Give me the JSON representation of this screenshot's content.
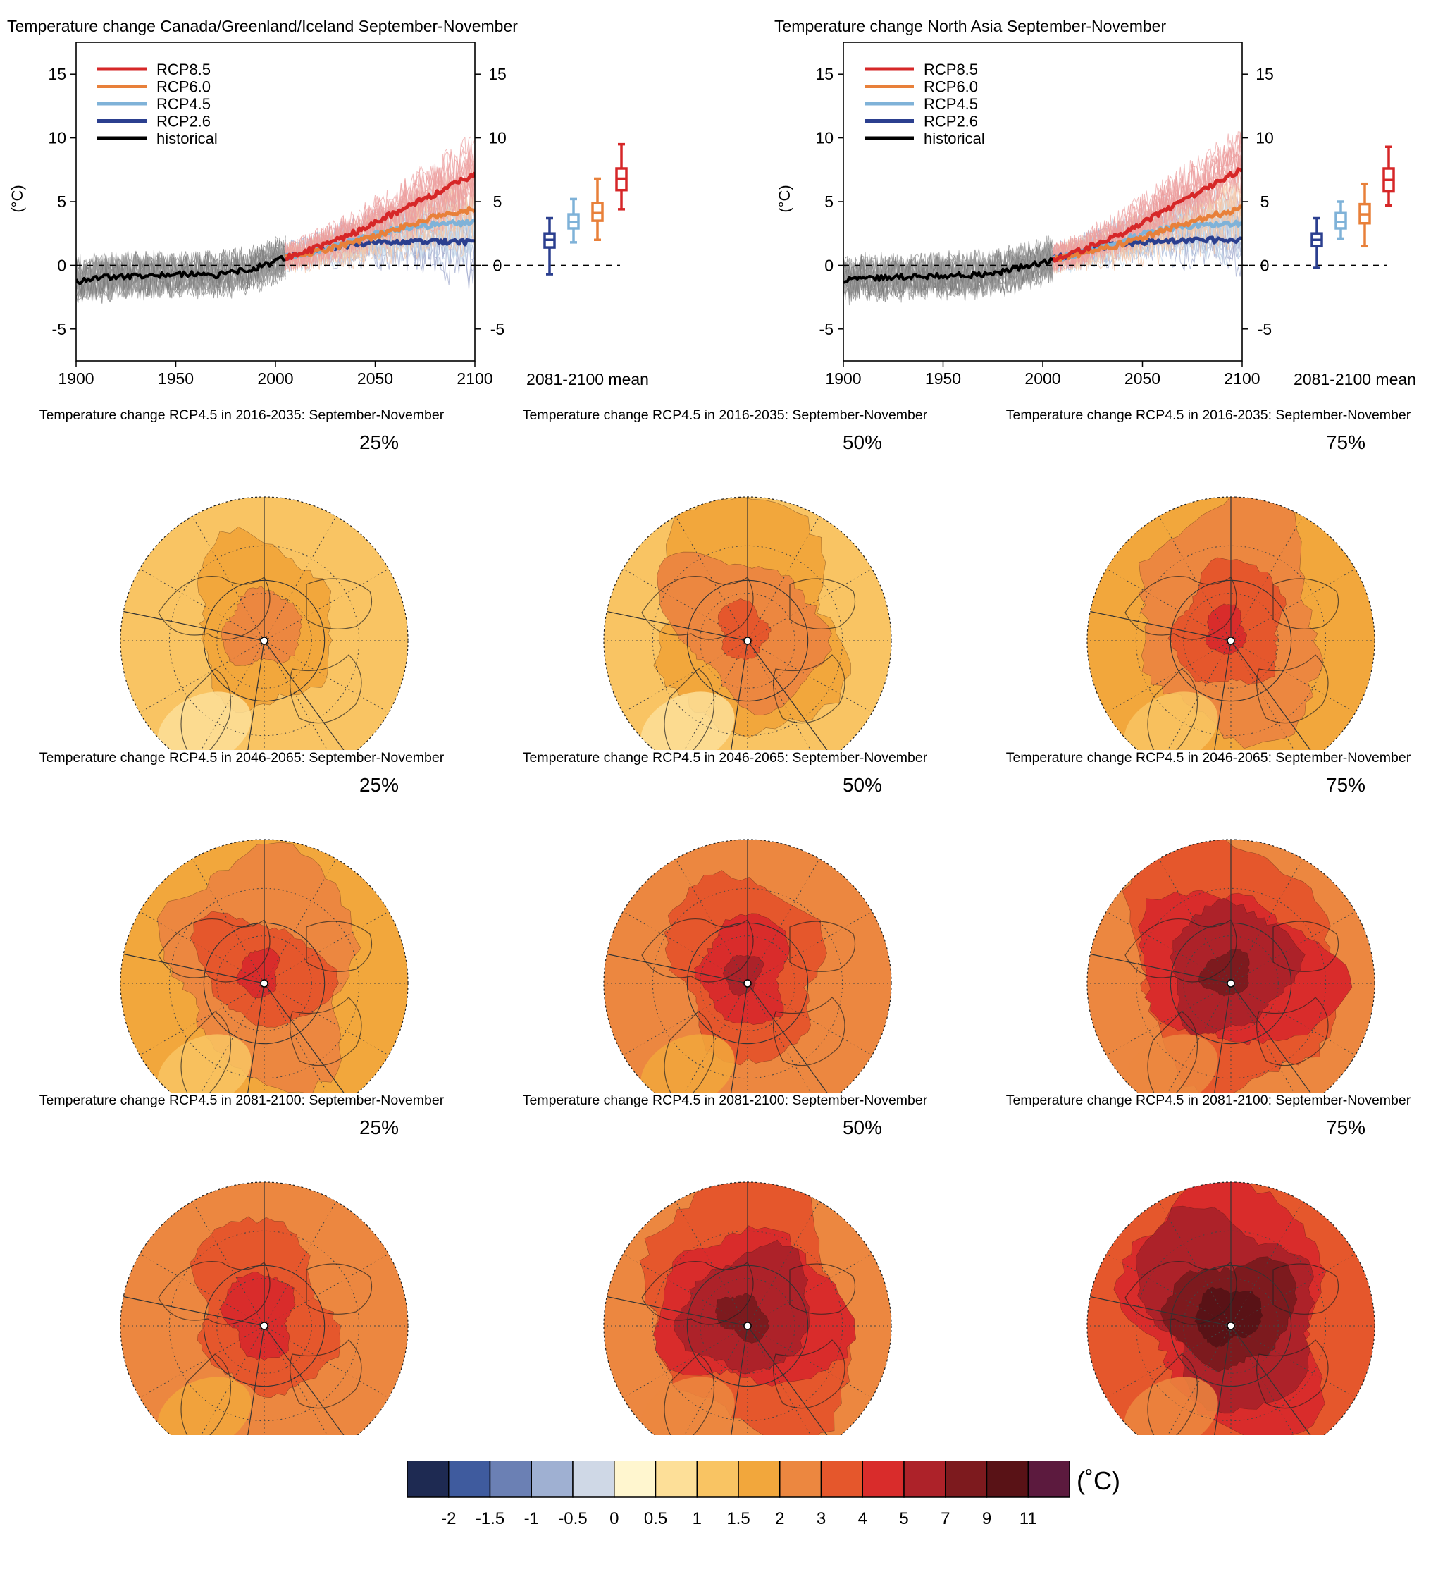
{
  "timeseries_panels": [
    {
      "title": "Temperature change Canada/Greenland/Iceland September-November"
    },
    {
      "title": "Temperature change North Asia September-November"
    }
  ],
  "map_panels": [
    {
      "title": "Temperature change RCP4.5 in 2016-2035: September-November",
      "percentile": "25%"
    },
    {
      "title": "Temperature change RCP4.5 in 2016-2035: September-November",
      "percentile": "50%"
    },
    {
      "title": "Temperature change RCP4.5 in 2016-2035: September-November",
      "percentile": "75%"
    },
    {
      "title": "Temperature change RCP4.5 in 2046-2065: September-November",
      "percentile": "25%"
    },
    {
      "title": "Temperature change RCP4.5 in 2046-2065: September-November",
      "percentile": "50%"
    },
    {
      "title": "Temperature change RCP4.5 in 2046-2065: September-November",
      "percentile": "75%"
    },
    {
      "title": "Temperature change RCP4.5 in 2081-2100: September-November",
      "percentile": "25%"
    },
    {
      "title": "Temperature change RCP4.5 in 2081-2100: September-November",
      "percentile": "50%"
    },
    {
      "title": "Temperature change RCP4.5 in 2081-2100: September-November",
      "percentile": "75%"
    }
  ],
  "colorbar": {
    "unit": "(˚C)",
    "labels": [
      "-2",
      "-1.5",
      "-1",
      "-0.5",
      "0",
      "0.5",
      "1",
      "1.5",
      "2",
      "3",
      "4",
      "5",
      "7",
      "9",
      "11"
    ],
    "colors": [
      "#1e2a52",
      "#3f5b9e",
      "#6b80b4",
      "#9fb0d2",
      "#cfd8e6",
      "#fff6cf",
      "#fddf98",
      "#f9c463",
      "#f2a73c",
      "#ec8740",
      "#e5572c",
      "#d92c2b",
      "#ad2229",
      "#7d1a1e",
      "#591216",
      "#5c1a3e"
    ]
  },
  "chart_data": [
    {
      "type": "line",
      "title": "Temperature change Canada/Greenland/Iceland September-November",
      "ylabel": "(°C)",
      "xlim": [
        1900,
        2100
      ],
      "ylim": [
        -7.5,
        17.5
      ],
      "xticks": [
        1900,
        1950,
        2000,
        2050,
        2100
      ],
      "yticks": [
        -5,
        0,
        5,
        10,
        15
      ],
      "box_label": "2081-2100 mean",
      "legend": {
        "position": "top-left",
        "entries": [
          "RCP8.5",
          "RCP6.0",
          "RCP4.5",
          "RCP2.6",
          "historical"
        ]
      },
      "series": [
        {
          "name": "historical",
          "color": "#000000",
          "x": [
            1900,
            1910,
            1920,
            1930,
            1940,
            1950,
            1960,
            1970,
            1980,
            1990,
            2000,
            2005
          ],
          "y": [
            -1.3,
            -1.0,
            -0.9,
            -0.8,
            -0.8,
            -0.7,
            -0.7,
            -0.8,
            -0.5,
            -0.2,
            0.3,
            0.6
          ]
        },
        {
          "name": "RCP8.5",
          "color": "#d62728",
          "x": [
            2005,
            2020,
            2040,
            2060,
            2080,
            2100
          ],
          "y": [
            0.6,
            1.3,
            2.6,
            4.1,
            5.6,
            7.2
          ]
        },
        {
          "name": "RCP6.0",
          "color": "#e8803a",
          "x": [
            2005,
            2020,
            2040,
            2060,
            2080,
            2100
          ],
          "y": [
            0.6,
            1.0,
            1.8,
            2.8,
            3.8,
            4.4
          ]
        },
        {
          "name": "RCP4.5",
          "color": "#7fb2d8",
          "x": [
            2005,
            2020,
            2040,
            2060,
            2080,
            2100
          ],
          "y": [
            0.6,
            1.1,
            2.0,
            2.8,
            3.2,
            3.4
          ]
        },
        {
          "name": "RCP2.6",
          "color": "#2b3f8f",
          "x": [
            2005,
            2020,
            2040,
            2060,
            2080,
            2100
          ],
          "y": [
            0.6,
            1.2,
            1.7,
            1.9,
            1.9,
            1.8
          ]
        }
      ],
      "boxes": [
        {
          "name": "RCP2.6",
          "color": "#2b3f8f",
          "whisker_low": -0.7,
          "q1": 1.4,
          "median": 2.0,
          "q3": 2.5,
          "whisker_high": 3.7
        },
        {
          "name": "RCP4.5",
          "color": "#7fb2d8",
          "whisker_low": 1.8,
          "q1": 2.9,
          "median": 3.4,
          "q3": 4.0,
          "whisker_high": 5.2
        },
        {
          "name": "RCP6.0",
          "color": "#e8803a",
          "whisker_low": 2.0,
          "q1": 3.5,
          "median": 4.1,
          "q3": 4.9,
          "whisker_high": 6.8
        },
        {
          "name": "RCP8.5",
          "color": "#d62728",
          "whisker_low": 4.4,
          "q1": 5.9,
          "median": 6.8,
          "q3": 7.6,
          "whisker_high": 9.5
        }
      ]
    },
    {
      "type": "line",
      "title": "Temperature change North Asia September-November",
      "ylabel": "(°C)",
      "xlim": [
        1900,
        2100
      ],
      "ylim": [
        -7.5,
        17.5
      ],
      "xticks": [
        1900,
        1950,
        2000,
        2050,
        2100
      ],
      "yticks": [
        -5,
        0,
        5,
        10,
        15
      ],
      "box_label": "2081-2100 mean",
      "legend": {
        "position": "top-left",
        "entries": [
          "RCP8.5",
          "RCP6.0",
          "RCP4.5",
          "RCP2.6",
          "historical"
        ]
      },
      "series": [
        {
          "name": "historical",
          "color": "#000000",
          "x": [
            1900,
            1910,
            1920,
            1930,
            1940,
            1950,
            1960,
            1970,
            1980,
            1990,
            2000,
            2005
          ],
          "y": [
            -1.2,
            -1.0,
            -1.0,
            -0.9,
            -0.9,
            -0.8,
            -0.8,
            -0.7,
            -0.5,
            -0.1,
            0.2,
            0.5
          ]
        },
        {
          "name": "RCP8.5",
          "color": "#d62728",
          "x": [
            2005,
            2020,
            2040,
            2060,
            2080,
            2100
          ],
          "y": [
            0.5,
            1.2,
            2.5,
            4.2,
            5.9,
            7.6
          ]
        },
        {
          "name": "RCP6.0",
          "color": "#e8803a",
          "x": [
            2005,
            2020,
            2040,
            2060,
            2080,
            2100
          ],
          "y": [
            0.5,
            0.9,
            1.7,
            2.7,
            3.7,
            4.5
          ]
        },
        {
          "name": "RCP4.5",
          "color": "#7fb2d8",
          "x": [
            2005,
            2020,
            2040,
            2060,
            2080,
            2100
          ],
          "y": [
            0.5,
            1.0,
            2.0,
            2.8,
            3.2,
            3.3
          ]
        },
        {
          "name": "RCP2.6",
          "color": "#2b3f8f",
          "x": [
            2005,
            2020,
            2040,
            2060,
            2080,
            2100
          ],
          "y": [
            0.5,
            1.1,
            1.7,
            2.0,
            2.0,
            2.0
          ]
        }
      ],
      "boxes": [
        {
          "name": "RCP2.6",
          "color": "#2b3f8f",
          "whisker_low": -0.2,
          "q1": 1.5,
          "median": 2.0,
          "q3": 2.5,
          "whisker_high": 3.7
        },
        {
          "name": "RCP4.5",
          "color": "#7fb2d8",
          "whisker_low": 2.1,
          "q1": 2.9,
          "median": 3.4,
          "q3": 4.1,
          "whisker_high": 5.0
        },
        {
          "name": "RCP6.0",
          "color": "#e8803a",
          "whisker_low": 1.5,
          "q1": 3.3,
          "median": 4.0,
          "q3": 4.8,
          "whisker_high": 6.4
        },
        {
          "name": "RCP8.5",
          "color": "#d62728",
          "whisker_low": 4.7,
          "q1": 5.8,
          "median": 6.7,
          "q3": 7.6,
          "whisker_high": 9.3
        }
      ]
    },
    {
      "type": "heatmap",
      "title": "Temperature change RCP4.5: September-November",
      "rows": [
        "2016-2035",
        "2046-2065",
        "2081-2100"
      ],
      "columns": [
        "25%",
        "50%",
        "75%"
      ],
      "center_change": [
        [
          2.5,
          3.5,
          4.5
        ],
        [
          4.5,
          5.5,
          8.0
        ],
        [
          5.0,
          8.0,
          11.0
        ]
      ],
      "edge_change": [
        [
          1.0,
          1.2,
          1.6
        ],
        [
          1.6,
          2.0,
          2.6
        ],
        [
          2.0,
          2.6,
          3.2
        ]
      ]
    }
  ]
}
